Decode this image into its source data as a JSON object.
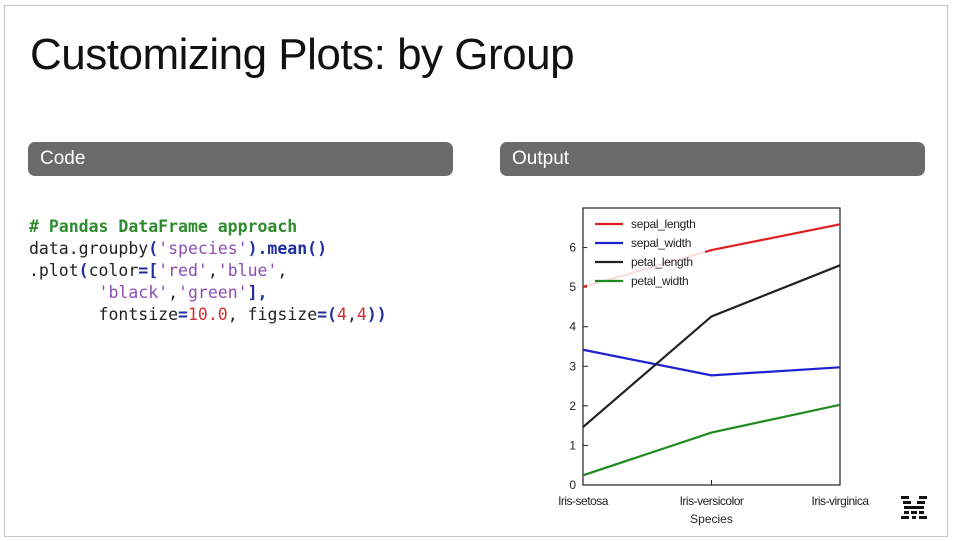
{
  "slide": {
    "title": "Customizing Plots: by Group",
    "code_header": "Code",
    "output_header": "Output"
  },
  "code": {
    "comment": "# Pandas DataFrame approach",
    "line2_a": "data.groupby",
    "line2_b": "(",
    "line2_str": "'species'",
    "line2_c": ").mean",
    "line2_d": "()",
    "line3_a": ".plot",
    "line3_b": "(",
    "line3_c": "color",
    "line3_d": "=[",
    "line3_str1": "'red'",
    "line3_e": ",",
    "line3_str2": "'blue'",
    "line3_f": ",",
    "line4_str1": "'black'",
    "line4_a": ",",
    "line4_str2": "'green'",
    "line4_b": "],",
    "line5_a": "fontsize",
    "line5_b": "=",
    "line5_num": "10.0",
    "line5_c": ", figsize",
    "line5_d": "=(",
    "line5_num1": "4",
    "line5_e": ",",
    "line5_num2": "4",
    "line5_f": "))"
  },
  "chart_data": {
    "type": "line",
    "categories": [
      "Iris-setosa",
      "Iris-versicolor",
      "Iris-virginica"
    ],
    "xlabel": "Species",
    "ylabel": "",
    "ylim": [
      0,
      7
    ],
    "yticks": [
      0,
      1,
      2,
      3,
      4,
      5,
      6
    ],
    "grid": false,
    "legend": "top-left",
    "series": [
      {
        "name": "sepal_length",
        "color": "#e02020",
        "values": [
          5.006,
          5.936,
          6.588
        ]
      },
      {
        "name": "sepal_width",
        "color": "#2020d0",
        "values": [
          3.418,
          2.77,
          2.974
        ]
      },
      {
        "name": "petal_length",
        "color": "#222222",
        "values": [
          1.464,
          4.26,
          5.552
        ]
      },
      {
        "name": "petal_width",
        "color": "#1f8a1f",
        "values": [
          0.244,
          1.326,
          2.026
        ]
      }
    ]
  },
  "logo": {
    "icon": "ibm-m-logo-icon"
  }
}
